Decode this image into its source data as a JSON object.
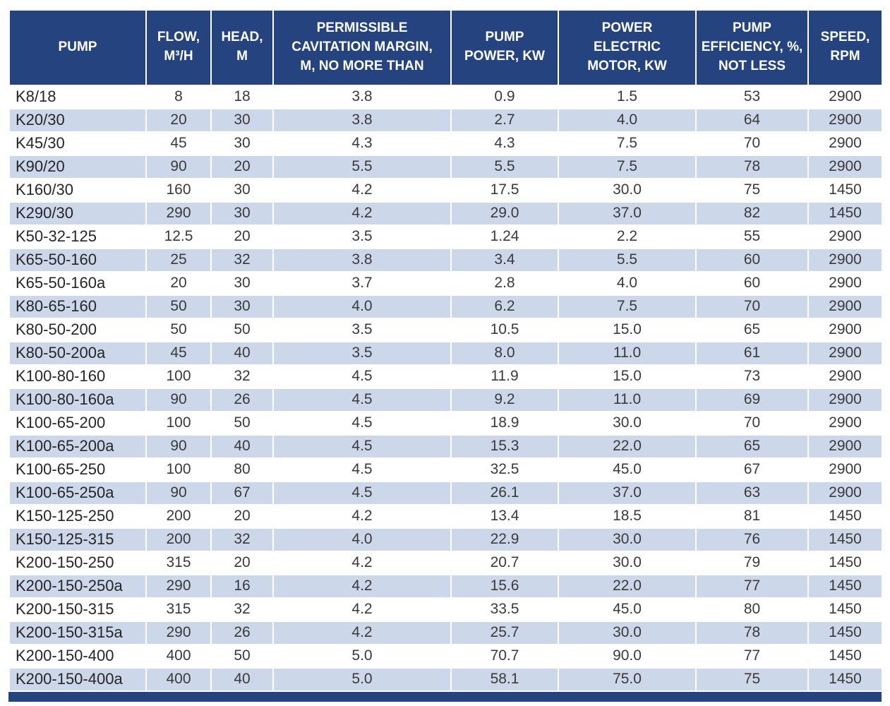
{
  "colors": {
    "header_bg": "#24437F",
    "band_bg": "#CDD7EA",
    "row_text": "#3A3A3A",
    "header_text": "#FFFFFF"
  },
  "table": {
    "columns": [
      {
        "key": "pump",
        "label": "PUMP"
      },
      {
        "key": "flow",
        "label": "FLOW,\nM³/H"
      },
      {
        "key": "head",
        "label": "HEAD,\nM"
      },
      {
        "key": "cavitation",
        "label": "PERMISSIBLE\nCAVITATION MARGIN,\nM, NO MORE THAN"
      },
      {
        "key": "pump_power",
        "label": "PUMP\nPOWER, KW"
      },
      {
        "key": "motor_power",
        "label": "POWER\nELECTRIC\nMOTOR, KW"
      },
      {
        "key": "efficiency",
        "label": "PUMP\nEFFICIENCY, %,\nNOT LESS"
      },
      {
        "key": "speed",
        "label": "SPEED,\nRPM"
      }
    ],
    "rows": [
      [
        "K8/18",
        "8",
        "18",
        "3.8",
        "0.9",
        "1.5",
        "53",
        "2900"
      ],
      [
        "K20/30",
        "20",
        "30",
        "3.8",
        "2.7",
        "4.0",
        "64",
        "2900"
      ],
      [
        "K45/30",
        "45",
        "30",
        "4.3",
        "4.3",
        "7.5",
        "70",
        "2900"
      ],
      [
        "K90/20",
        "90",
        "20",
        "5.5",
        "5.5",
        "7.5",
        "78",
        "2900"
      ],
      [
        "K160/30",
        "160",
        "30",
        "4.2",
        "17.5",
        "30.0",
        "75",
        "1450"
      ],
      [
        "K290/30",
        "290",
        "30",
        "4.2",
        "29.0",
        "37.0",
        "82",
        "1450"
      ],
      [
        "K50-32-125",
        "12.5",
        "20",
        "3.5",
        "1.24",
        "2.2",
        "55",
        "2900"
      ],
      [
        "K65-50-160",
        "25",
        "32",
        "3.8",
        "3.4",
        "5.5",
        "60",
        "2900"
      ],
      [
        "K65-50-160a",
        "20",
        "30",
        "3.7",
        "2.8",
        "4.0",
        "60",
        "2900"
      ],
      [
        "K80-65-160",
        "50",
        "30",
        "4.0",
        "6.2",
        "7.5",
        "70",
        "2900"
      ],
      [
        "K80-50-200",
        "50",
        "50",
        "3.5",
        "10.5",
        "15.0",
        "65",
        "2900"
      ],
      [
        "K80-50-200a",
        "45",
        "40",
        "3.5",
        "8.0",
        "11.0",
        "61",
        "2900"
      ],
      [
        "K100-80-160",
        "100",
        "32",
        "4.5",
        "11.9",
        "15.0",
        "73",
        "2900"
      ],
      [
        "K100-80-160a",
        "90",
        "26",
        "4.5",
        "9.2",
        "11.0",
        "69",
        "2900"
      ],
      [
        "K100-65-200",
        "100",
        "50",
        "4.5",
        "18.9",
        "30.0",
        "70",
        "2900"
      ],
      [
        "K100-65-200a",
        "90",
        "40",
        "4.5",
        "15.3",
        "22.0",
        "65",
        "2900"
      ],
      [
        "K100-65-250",
        "100",
        "80",
        "4.5",
        "32.5",
        "45.0",
        "67",
        "2900"
      ],
      [
        "K100-65-250a",
        "90",
        "67",
        "4.5",
        "26.1",
        "37.0",
        "63",
        "2900"
      ],
      [
        "K150-125-250",
        "200",
        "20",
        "4.2",
        "13.4",
        "18.5",
        "81",
        "1450"
      ],
      [
        "K150-125-315",
        "200",
        "32",
        "4.0",
        "22.9",
        "30.0",
        "76",
        "1450"
      ],
      [
        "K200-150-250",
        "315",
        "20",
        "4.2",
        "20.7",
        "30.0",
        "79",
        "1450"
      ],
      [
        "K200-150-250a",
        "290",
        "16",
        "4.2",
        "15.6",
        "22.0",
        "77",
        "1450"
      ],
      [
        "K200-150-315",
        "315",
        "32",
        "4.2",
        "33.5",
        "45.0",
        "80",
        "1450"
      ],
      [
        "K200-150-315a",
        "290",
        "26",
        "4.2",
        "25.7",
        "30.0",
        "78",
        "1450"
      ],
      [
        "K200-150-400",
        "400",
        "50",
        "5.0",
        "70.7",
        "90.0",
        "77",
        "1450"
      ],
      [
        "K200-150-400a",
        "400",
        "40",
        "5.0",
        "58.1",
        "75.0",
        "75",
        "1450"
      ]
    ]
  }
}
